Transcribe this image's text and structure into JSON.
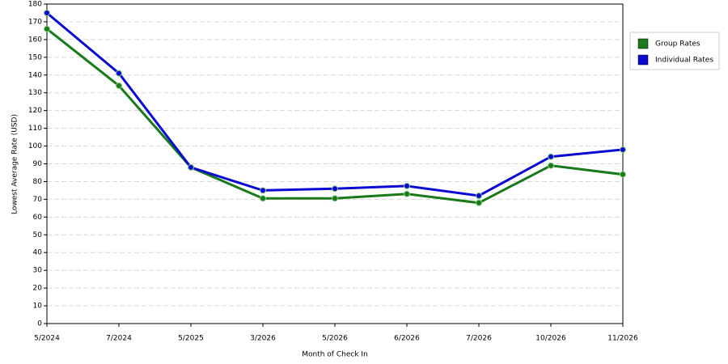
{
  "chart_data": {
    "type": "line",
    "x_label": "Month of Check In",
    "y_label": "Lowest Average Rate (USD)",
    "categories": [
      "5/2024",
      "7/2024",
      "5/2025",
      "3/2026",
      "5/2026",
      "6/2026",
      "7/2026",
      "10/2026",
      "11/2026"
    ],
    "series": [
      {
        "name": "Group Rates",
        "color": "#1a7a1a",
        "values": [
          166,
          134,
          88,
          70.5,
          70.5,
          73,
          68,
          89,
          84
        ]
      },
      {
        "name": "Individual Rates",
        "color": "#0a0ad0",
        "values": [
          175,
          141,
          88,
          75,
          76,
          77.5,
          72,
          94,
          98
        ]
      }
    ],
    "ylim": [
      0,
      180
    ],
    "yticks": [
      0,
      10,
      20,
      30,
      40,
      50,
      60,
      70,
      80,
      90,
      100,
      110,
      120,
      130,
      140,
      150,
      160,
      170,
      180
    ],
    "grid": true,
    "legend_position": "right"
  }
}
